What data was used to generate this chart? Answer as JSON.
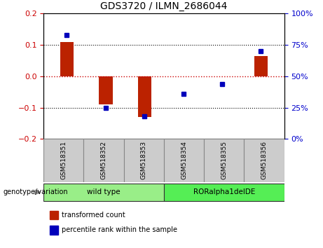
{
  "title": "GDS3720 / ILMN_2686044",
  "samples": [
    "GSM518351",
    "GSM518352",
    "GSM518353",
    "GSM518354",
    "GSM518355",
    "GSM518356"
  ],
  "bar_values": [
    0.11,
    -0.09,
    -0.13,
    0.0,
    0.0,
    0.065
  ],
  "percentile_values": [
    83,
    25,
    18,
    36,
    44,
    70
  ],
  "ylim_left": [
    -0.2,
    0.2
  ],
  "ylim_right": [
    0,
    100
  ],
  "yticks_left": [
    -0.2,
    -0.1,
    0.0,
    0.1,
    0.2
  ],
  "yticks_right": [
    0,
    25,
    50,
    75,
    100
  ],
  "bar_color": "#bb2200",
  "dot_color": "#0000bb",
  "zero_line_color": "#cc0000",
  "groups": [
    {
      "label": "wild type",
      "start": 0,
      "end": 3,
      "color": "#99ee88"
    },
    {
      "label": "RORalpha1delDE",
      "start": 3,
      "end": 6,
      "color": "#55ee55"
    }
  ],
  "group_label": "genotype/variation",
  "legend_items": [
    {
      "label": "transformed count",
      "color": "#bb2200"
    },
    {
      "label": "percentile rank within the sample",
      "color": "#0000bb"
    }
  ],
  "bar_width": 0.35,
  "plot_bg": "#ffffff",
  "tick_label_color_left": "#cc0000",
  "tick_label_color_right": "#0000cc",
  "sample_bg": "#cccccc",
  "sample_border": "#888888"
}
